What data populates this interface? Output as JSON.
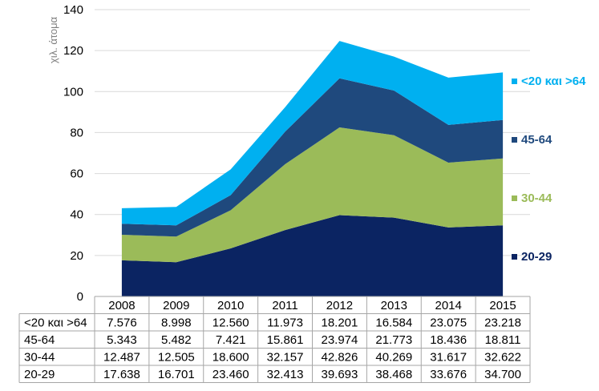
{
  "chart_data": {
    "type": "area",
    "stacked": true,
    "ylabel": "χιλ. άτομα",
    "ylim": [
      0,
      140
    ],
    "yticks": [
      0,
      20,
      40,
      60,
      80,
      100,
      120,
      140
    ],
    "grid": true,
    "legend_position": "right",
    "categories": [
      "2008",
      "2009",
      "2010",
      "2011",
      "2012",
      "2013",
      "2014",
      "2015"
    ],
    "series": [
      {
        "name": "20-29",
        "color": "#0b2462",
        "values": [
          17.638,
          16.701,
          23.46,
          32.413,
          39.693,
          38.468,
          33.676,
          34.7
        ],
        "labels": [
          "17.638",
          "16.701",
          "23.460",
          "32.413",
          "39.693",
          "38.468",
          "33.676",
          "34.700"
        ]
      },
      {
        "name": "30-44",
        "color": "#9bbb59",
        "values": [
          12.487,
          12.505,
          18.6,
          32.157,
          42.826,
          40.269,
          31.617,
          32.622
        ],
        "labels": [
          "12.487",
          "12.505",
          "18.600",
          "32.157",
          "42.826",
          "40.269",
          "31.617",
          "32.622"
        ]
      },
      {
        "name": "45-64",
        "color": "#1f497d",
        "values": [
          5.343,
          5.482,
          7.421,
          15.861,
          23.974,
          21.773,
          18.436,
          18.811
        ],
        "labels": [
          "5.343",
          "5.482",
          "7.421",
          "15.861",
          "23.974",
          "21.773",
          "18.436",
          "18.811"
        ]
      },
      {
        "name": "<20 και >64",
        "color": "#00b0f0",
        "values": [
          7.576,
          8.998,
          12.56,
          11.973,
          18.201,
          16.584,
          23.075,
          23.218
        ],
        "labels": [
          "7.576",
          "8.998",
          "12.560",
          "11.973",
          "18.201",
          "16.584",
          "23.075",
          "23.218"
        ]
      }
    ],
    "table_row_order": [
      "<20 και >64",
      "45-64",
      "30-44",
      "20-29"
    ]
  }
}
